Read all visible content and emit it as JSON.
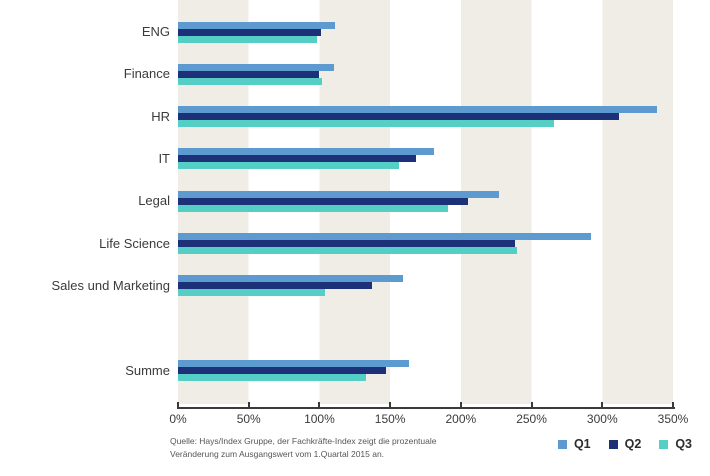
{
  "chart_data": {
    "type": "bar",
    "orientation": "horizontal",
    "title": "",
    "categories": [
      "ENG",
      "Finance",
      "HR",
      "IT",
      "Legal",
      "Life Science",
      "Sales und Marketing",
      "Summe"
    ],
    "series": [
      {
        "name": "Q1",
        "color": "#5d9ad0",
        "values": [
          111,
          110,
          339,
          181,
          227,
          292,
          159,
          163
        ]
      },
      {
        "name": "Q2",
        "color": "#1d3179",
        "values": [
          101,
          100,
          312,
          168,
          205,
          238,
          137,
          147
        ]
      },
      {
        "name": "Q3",
        "color": "#55cec5",
        "values": [
          98,
          102,
          266,
          156,
          191,
          240,
          104,
          133
        ]
      }
    ],
    "unit": "%",
    "xlim": [
      0,
      350
    ],
    "x_tick_labels": [
      "0%",
      "50%",
      "100%",
      "150%",
      "200%",
      "250%",
      "300%",
      "350%"
    ],
    "x_tick_values": [
      0,
      50,
      100,
      150,
      200,
      250,
      300,
      350
    ],
    "legend_position": "bottom-right",
    "grid": "alternating-vertical-bands",
    "summe_separated": true
  },
  "footer": {
    "source_line1": "Quelle: Hays/Index Gruppe, der Fachkräfte-Index zeigt die prozentuale",
    "source_line2": "Veränderung zum Ausgangswert vom 1.Quartal 2015 an."
  },
  "legend": {
    "items": [
      {
        "label": "Q1",
        "color": "#5d9ad0"
      },
      {
        "label": "Q2",
        "color": "#1d3179"
      },
      {
        "label": "Q3",
        "color": "#55cec5"
      }
    ]
  },
  "colors": {
    "band": "#f0ede6",
    "band_alt": "#ffffff",
    "axis": "#3a3a3a",
    "category_text": "#3b3b3b",
    "tick_text": "#3b3b3b",
    "source_text": "#56565a",
    "legend_text": "#2d2d2d"
  }
}
